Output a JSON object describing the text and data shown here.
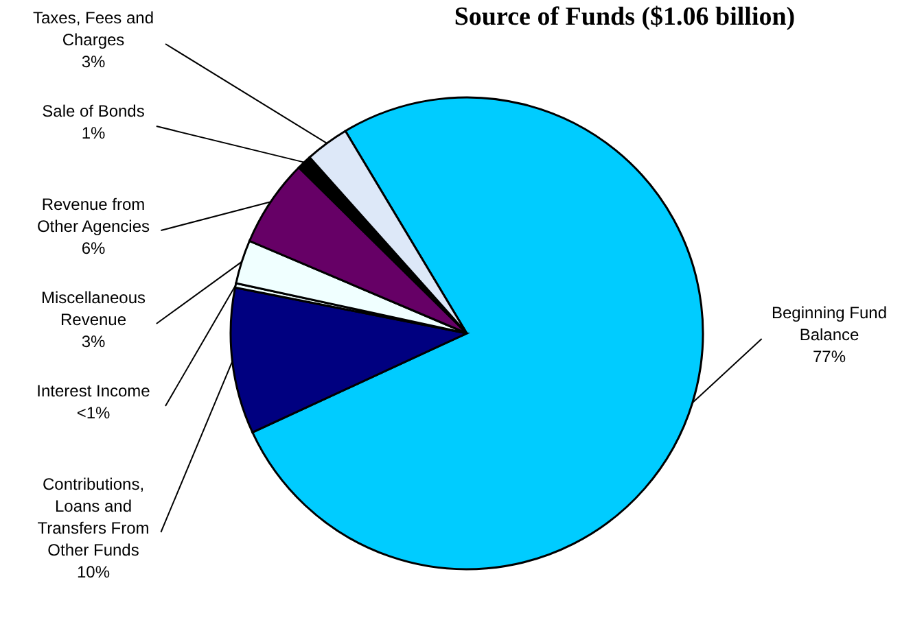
{
  "chart_data": {
    "type": "pie",
    "title": "Source of Funds ($1.06 billion)",
    "categories": [
      "Beginning Fund Balance",
      "Contributions, Loans and Transfers From Other Funds",
      "Interest Income",
      "Miscellaneous Revenue",
      "Revenue from Other Agencies",
      "Sale of Bonds",
      "Taxes, Fees and Charges"
    ],
    "values": [
      76.7,
      10,
      0.3,
      3,
      6,
      1,
      3
    ],
    "value_labels": [
      "77%",
      "10%",
      "<1%",
      "3%",
      "6%",
      "1%",
      "3%"
    ],
    "colors": [
      "#00ccff",
      "#000080",
      "#f0ffff",
      "#f0ffff",
      "#660066",
      "#000000",
      "#dde8f8"
    ]
  }
}
